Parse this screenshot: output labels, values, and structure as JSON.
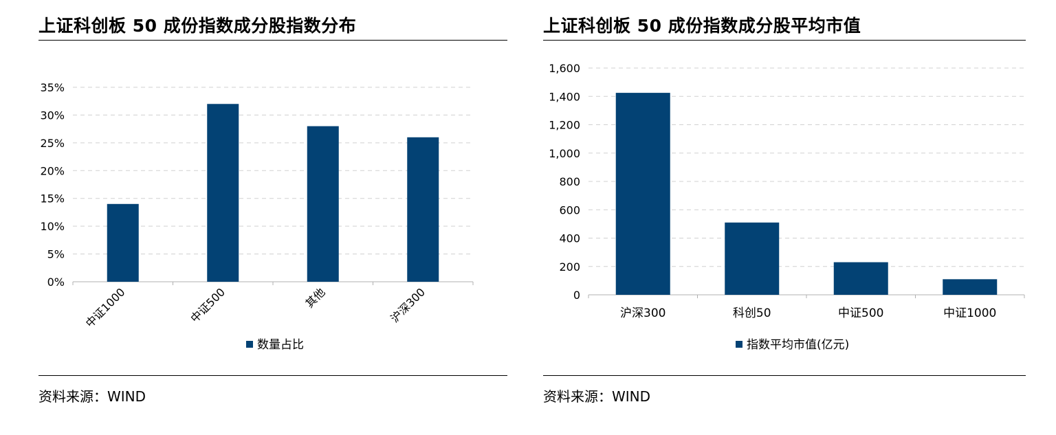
{
  "left_panel": {
    "title": "上证科创板 50 成份指数成分股指数分布",
    "source": "资料来源：WIND"
  },
  "right_panel": {
    "title": "上证科创板 50 成份指数成分股平均市值",
    "source": "资料来源：WIND"
  },
  "colors": {
    "bar": "#034274",
    "grid": "#d0d0d0",
    "axis": "#b0b0b0"
  },
  "chart_data": [
    {
      "type": "bar",
      "title": "上证科创板 50 成份指数成分股指数分布",
      "categories": [
        "中证1000",
        "中证500",
        "其他",
        "沪深300"
      ],
      "series": [
        {
          "name": "数量占比",
          "values": [
            14,
            32,
            28,
            26
          ]
        }
      ],
      "y_tick_labels": [
        "0%",
        "5%",
        "10%",
        "15%",
        "20%",
        "25%",
        "30%",
        "35%"
      ],
      "ylim": [
        0,
        35
      ],
      "ytick_step": 5,
      "y_unit": "%",
      "grid": true,
      "legend": "bottom"
    },
    {
      "type": "bar",
      "title": "上证科创板 50 成份指数成分股平均市值",
      "categories": [
        "沪深300",
        "科创50",
        "中证500",
        "中证1000"
      ],
      "series": [
        {
          "name": "指数平均市值(亿元)",
          "values": [
            1425,
            510,
            230,
            110
          ]
        }
      ],
      "y_tick_labels": [
        "0",
        "200",
        "400",
        "600",
        "800",
        "1,000",
        "1,200",
        "1,400",
        "1,600"
      ],
      "ylim": [
        0,
        1600
      ],
      "ytick_step": 200,
      "grid": true,
      "legend": "bottom"
    }
  ]
}
